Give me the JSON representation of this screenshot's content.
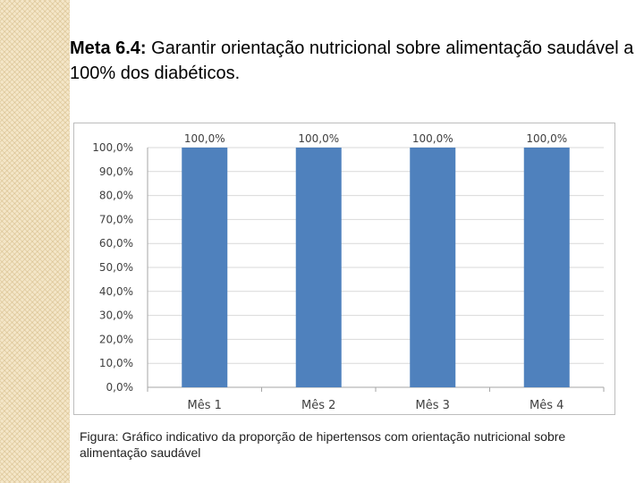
{
  "slide": {
    "title_lead": "Meta 6.4:",
    "title_rest": " Garantir orientação nutricional sobre alimentação saudável a 100% dos diabéticos.",
    "caption": "Figura: Gráfico indicativo da proporção de hipertensos com orientação nutricional sobre alimentação saudável"
  },
  "colors": {
    "bar": "#4f81bd",
    "grid": "#d9d9d9",
    "axis": "#a6a6a6",
    "side_strip": "#f4e6c8"
  },
  "chart_data": {
    "type": "bar",
    "title": "",
    "xlabel": "",
    "ylabel": "",
    "categories": [
      "Mês 1",
      "Mês 2",
      "Mês 3",
      "Mês 4"
    ],
    "values": [
      100.0,
      100.0,
      100.0,
      100.0
    ],
    "data_labels": [
      "100,0%",
      "100,0%",
      "100,0%",
      "100,0%"
    ],
    "ylim": [
      0,
      100
    ],
    "yticks": [
      0,
      10,
      20,
      30,
      40,
      50,
      60,
      70,
      80,
      90,
      100
    ],
    "ytick_labels": [
      "0,0%",
      "10,0%",
      "20,0%",
      "30,0%",
      "40,0%",
      "50,0%",
      "60,0%",
      "70,0%",
      "80,0%",
      "90,0%",
      "100,0%"
    ],
    "grid": true,
    "legend": "none"
  }
}
